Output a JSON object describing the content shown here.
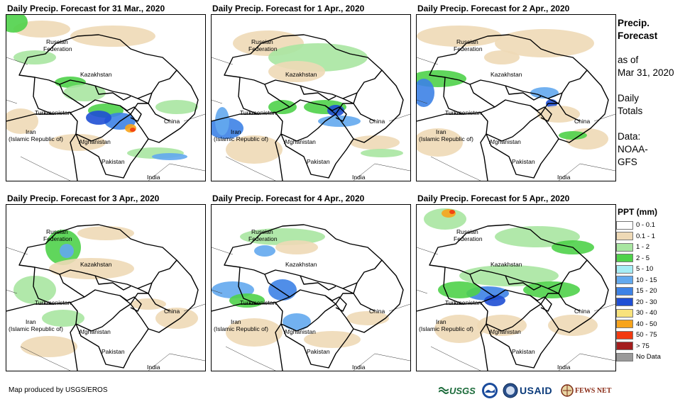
{
  "panels": [
    {
      "title": "Daily Precip. Forecast for 31 Mar., 2020",
      "heavy": true
    },
    {
      "title": "Daily Precip. Forecast for 1 Apr., 2020"
    },
    {
      "title": "Daily Precip. Forecast for 2 Apr., 2020"
    },
    {
      "title": "Daily Precip. Forecast for 3 Apr., 2020"
    },
    {
      "title": "Daily Precip. Forecast for 4 Apr., 2020"
    },
    {
      "title": "Daily Precip. Forecast for 5 Apr., 2020",
      "heavy": true
    }
  ],
  "map_labels": {
    "russia_line1": "Russian",
    "russia_line2": "Federation",
    "kazakhstan": "Kazakhstan",
    "turkmenistan": "Turkmenistan",
    "china": "China",
    "iran_line1": "Iran",
    "iran_line2": "(Islamic Republic of)",
    "afghanistan": "Afghanistan",
    "pakistan": "Pakistan",
    "india": "India"
  },
  "side_info": {
    "title_line1": "Precip.",
    "title_line2": "Forecast",
    "asof_line1": "as of",
    "asof_line2": "Mar 31, 2020",
    "totals_line1": "Daily",
    "totals_line2": "Totals",
    "data_line1": "Data:",
    "data_line2": "NOAA-",
    "data_line3": "GFS"
  },
  "legend": {
    "title": "PPT (mm)",
    "items": [
      {
        "label": "0 - 0.1",
        "color": "#ffffff"
      },
      {
        "label": "0.1 - 1",
        "color": "#eed9b6"
      },
      {
        "label": "1 - 2",
        "color": "#a8e6a1"
      },
      {
        "label": "2 - 5",
        "color": "#4fd24a"
      },
      {
        "label": "5 - 10",
        "color": "#a6edf5"
      },
      {
        "label": "10 - 15",
        "color": "#63a9ee"
      },
      {
        "label": "15 - 20",
        "color": "#3d82e6"
      },
      {
        "label": "20 - 30",
        "color": "#1f4fd4"
      },
      {
        "label": "30 - 40",
        "color": "#f8e27c"
      },
      {
        "label": "40 - 50",
        "color": "#f7a41c"
      },
      {
        "label": "50 - 75",
        "color": "#f23a10"
      },
      {
        "label": "> 75",
        "color": "#a31d1d"
      },
      {
        "label": "No Data",
        "color": "#9a9a9a"
      }
    ]
  },
  "credit": "Map produced by USGS/EROS",
  "logos": {
    "usgs": "USGS",
    "usaid": "USAID",
    "fewsnet": "FEWS NET"
  }
}
